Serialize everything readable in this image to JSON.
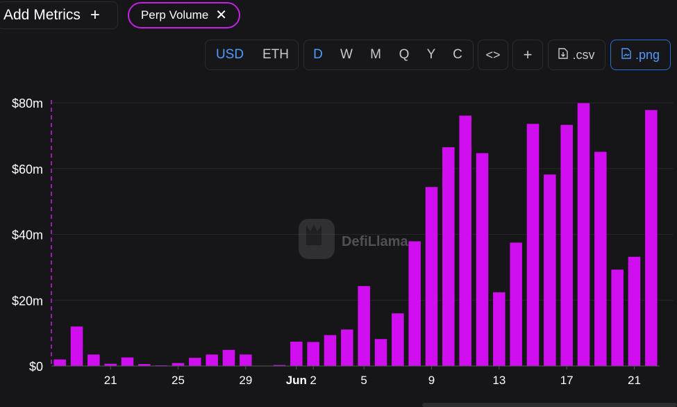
{
  "header": {
    "add_metrics_label": "Add Metrics",
    "add_icon": "plus-icon",
    "metric_pill_label": "Perp Volume",
    "metric_remove_icon": "close-icon"
  },
  "toolbar": {
    "currency": {
      "options": [
        "USD",
        "ETH"
      ],
      "selected": "USD"
    },
    "interval": {
      "options": [
        "D",
        "W",
        "M",
        "Q",
        "Y",
        "C"
      ],
      "selected": "D"
    },
    "embed_label": "<>",
    "add_label": "+",
    "csv_label": ".csv",
    "png_label": ".png",
    "accent_color": "#4f9bff"
  },
  "watermark": {
    "text": "DefiLlama"
  },
  "chart_data": {
    "type": "bar",
    "color": "#d10ef0",
    "x_tick_labels": [
      {
        "index": 3,
        "label": "21"
      },
      {
        "index": 7,
        "label": "25"
      },
      {
        "index": 11,
        "label": "29"
      },
      {
        "index": 14,
        "label": "Jun",
        "bold": true
      },
      {
        "index": 15,
        "label": "2"
      },
      {
        "index": 18,
        "label": "5"
      },
      {
        "index": 22,
        "label": "9"
      },
      {
        "index": 26,
        "label": "13"
      },
      {
        "index": 30,
        "label": "17"
      },
      {
        "index": 34,
        "label": "21"
      }
    ],
    "values": [
      2,
      12,
      3.5,
      0.7,
      2.6,
      0.6,
      0.2,
      0.9,
      2.5,
      3.5,
      4.9,
      3.5,
      0.1,
      0.3,
      7.4,
      7.3,
      9.4,
      11.1,
      24.3,
      8.2,
      16.0,
      37.9,
      54.4,
      66.5,
      76.1,
      64.7,
      22.4,
      37.5,
      73.6,
      58.2,
      73.3,
      79.9,
      65.1,
      29.3,
      33.2,
      77.8
    ],
    "ylim": [
      0,
      80
    ],
    "y_ticks": [
      {
        "value": 0,
        "label": "$0"
      },
      {
        "value": 20,
        "label": "$20m"
      },
      {
        "value": 40,
        "label": "$40m"
      },
      {
        "value": 60,
        "label": "$60m"
      },
      {
        "value": 80,
        "label": "$80m"
      }
    ],
    "grid": true
  }
}
